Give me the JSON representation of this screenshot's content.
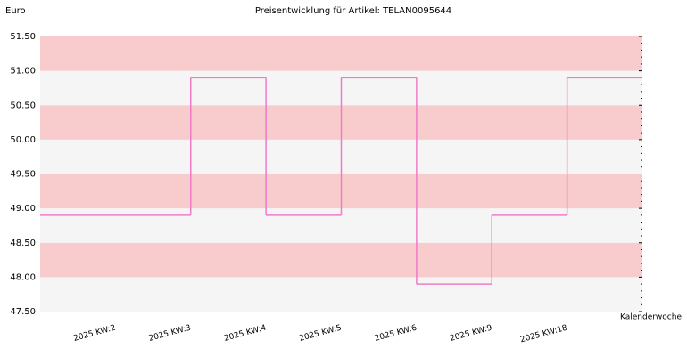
{
  "chart_data": {
    "type": "step",
    "title": "Preisentwicklung für Artikel: TELAN0095644",
    "y_label": "Euro",
    "x_label": "Kalenderwoche",
    "categories": [
      null,
      "2025 KW:2",
      "2025 KW:3",
      "2025 KW:4",
      "2025 KW:5",
      "2025 KW:6",
      "2025 KW:9",
      "2025 KW:18"
    ],
    "values": [
      48.9,
      48.9,
      50.9,
      48.9,
      50.9,
      47.9,
      48.9,
      50.9
    ],
    "color": "#f07ac8",
    "band_colors": [
      "#f8cccc",
      "#f5f5f5"
    ],
    "ylim": [
      47.5,
      51.5
    ],
    "yticks": [
      {
        "value": 47.5,
        "label": "47.50"
      },
      {
        "value": 48,
        "label": "48.00"
      },
      {
        "value": 48.5,
        "label": "48.50"
      },
      {
        "value": 49,
        "label": "49.00"
      },
      {
        "value": 49.5,
        "label": "49.50"
      },
      {
        "value": 50,
        "label": "50.00"
      },
      {
        "value": 50.5,
        "label": "50.50"
      },
      {
        "value": 51,
        "label": "51.00"
      },
      {
        "value": 51.5,
        "label": "51.50"
      }
    ]
  }
}
